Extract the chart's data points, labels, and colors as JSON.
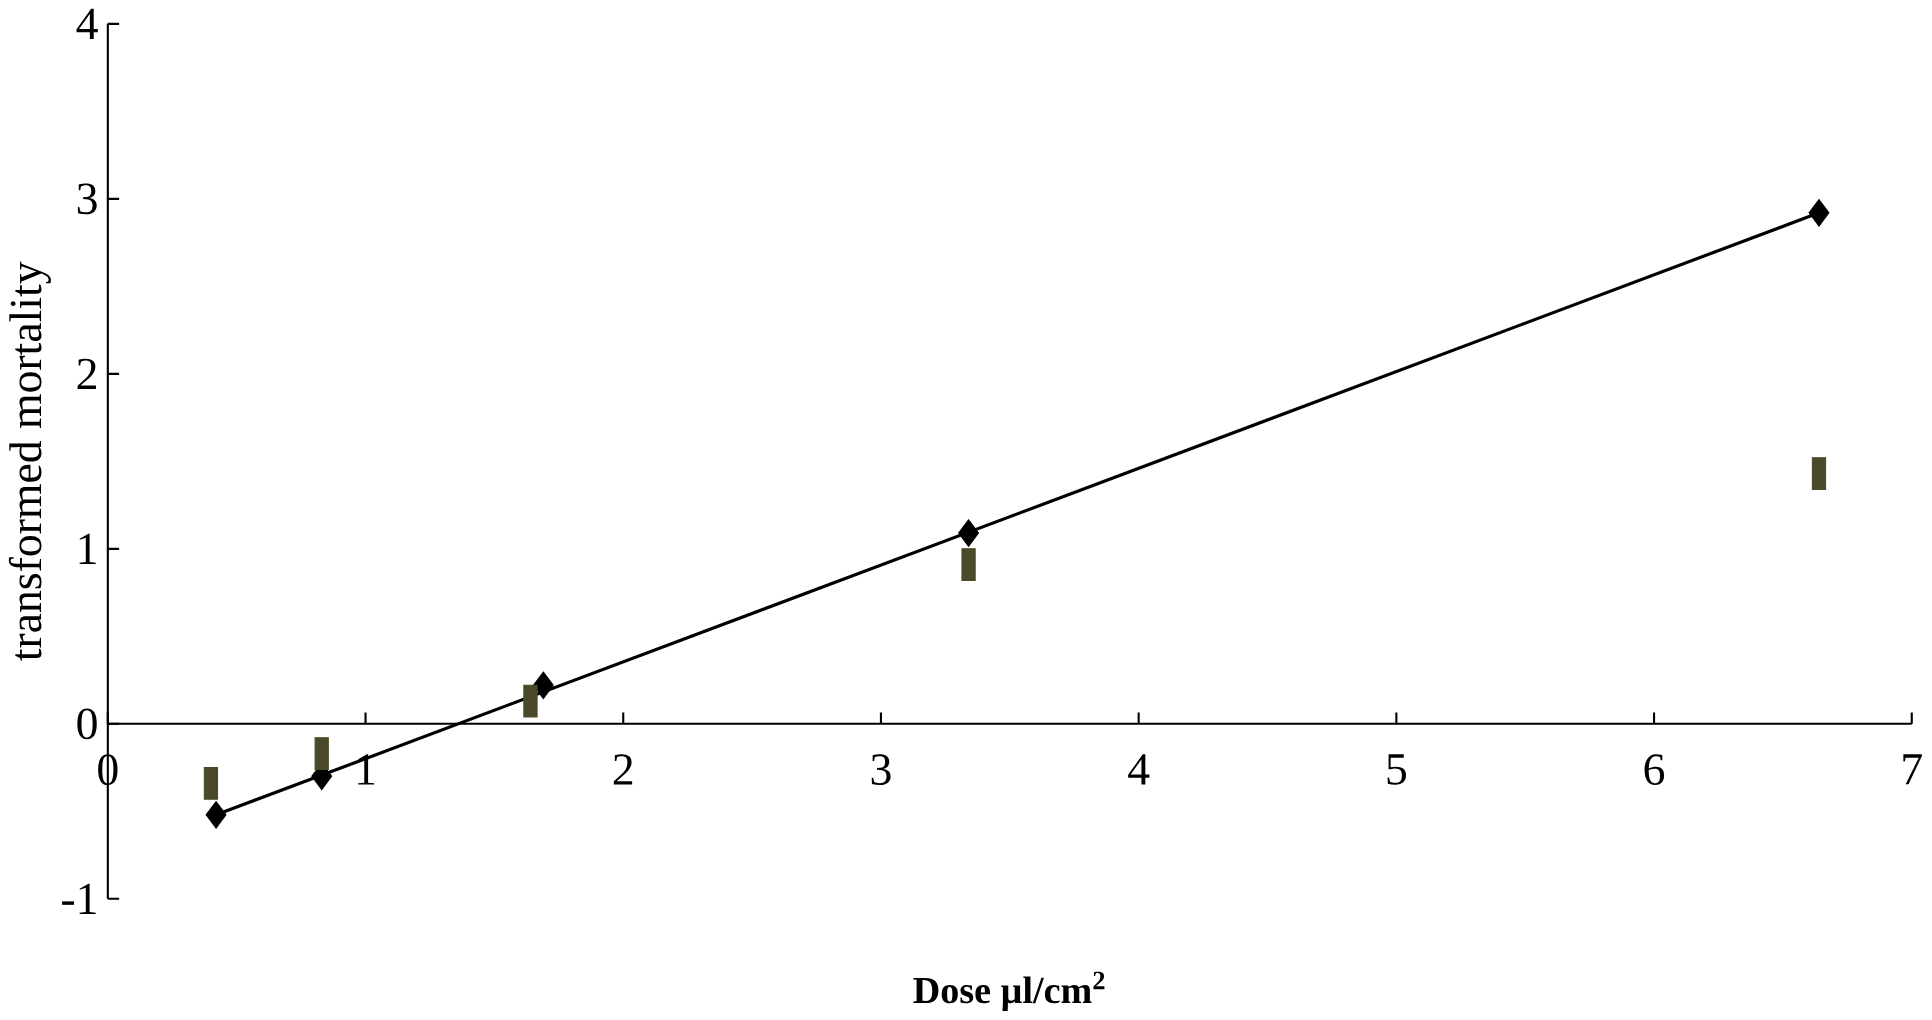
{
  "chart_data": {
    "type": "scatter",
    "xlabel": "Dose µl/cm$^{2}$",
    "ylabel": "transformed mortality",
    "xlim": [
      0,
      7
    ],
    "ylim": [
      -1,
      4
    ],
    "xticks": [
      0,
      1,
      2,
      3,
      4,
      5,
      6,
      7
    ],
    "yticks": [
      -1,
      0,
      1,
      2,
      3,
      4
    ],
    "grid": false,
    "series": [
      {
        "marker": "diamond",
        "color": "#000000",
        "x": [
          0.42,
          0.83,
          1.69,
          3.34,
          6.64
        ],
        "values": [
          -0.52,
          -0.3,
          0.22,
          1.09,
          2.92
        ]
      },
      {
        "marker": "square",
        "color": "#4a4a2a",
        "x": [
          0.4,
          0.83,
          1.64,
          3.34,
          6.64
        ],
        "values": [
          -0.34,
          -0.17,
          0.13,
          0.91,
          1.43
        ]
      },
      {
        "type": "line",
        "marker": "none",
        "line_style": "solid",
        "color": "#000000",
        "x": [
          0.42,
          6.64
        ],
        "values": [
          -0.52,
          2.92
        ]
      }
    ]
  }
}
